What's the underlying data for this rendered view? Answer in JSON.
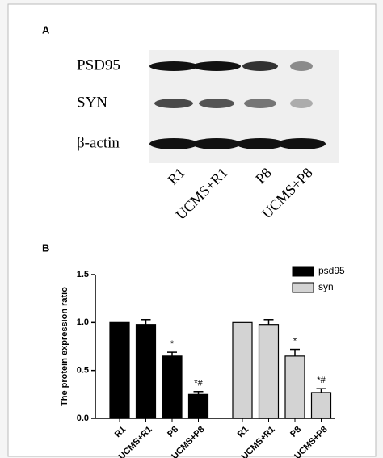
{
  "panel_a": {
    "panel_label": "A",
    "rows": [
      "PSD95",
      "SYN",
      "β-actin"
    ],
    "lanes": [
      "R1",
      "UCMS+R1",
      "P8",
      "UCMS+P8"
    ]
  },
  "chart_data": {
    "type": "bar",
    "panel_label": "B",
    "y_label": "The protein expression ratio",
    "categories": [
      "R1",
      "UCMS+R1",
      "P8",
      "UCMS+P8"
    ],
    "series": [
      {
        "name": "psd95",
        "color": "#000000",
        "values": [
          1.0,
          0.98,
          0.65,
          0.25
        ],
        "errors": [
          0,
          0.05,
          0.04,
          0.03
        ],
        "annotations": [
          null,
          null,
          "*",
          "*#"
        ]
      },
      {
        "name": "syn",
        "color": "#d3d3d3",
        "values": [
          1.0,
          0.98,
          0.65,
          0.27
        ],
        "errors": [
          0,
          0.05,
          0.07,
          0.04
        ],
        "annotations": [
          null,
          null,
          "*",
          "*#"
        ]
      }
    ],
    "ylim": [
      0,
      1.5
    ],
    "yticks": [
      {
        "value": 0,
        "label": "0.0"
      },
      {
        "value": 0.5,
        "label": "0.5"
      },
      {
        "value": 1.0,
        "label": "1.0"
      },
      {
        "value": 1.5,
        "label": "1.5"
      }
    ],
    "legend": "upper right"
  }
}
